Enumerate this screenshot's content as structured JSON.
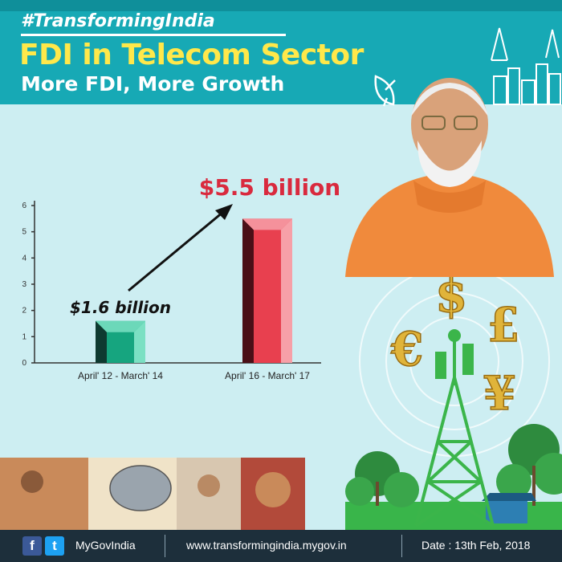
{
  "header": {
    "hashtag": "#TransformingIndia",
    "title": "FDI in Telecom Sector",
    "subtitle": "More FDI, More Growth"
  },
  "chart_data": {
    "type": "bar",
    "categories": [
      "April' 12 - March' 14",
      "April' 16 - March' 17"
    ],
    "values": [
      1.6,
      5.5
    ],
    "data_labels": [
      "$1.6 billion",
      "$5.5 billion"
    ],
    "title": "",
    "xlabel": "",
    "ylabel": "",
    "ylim": [
      0,
      6
    ],
    "yticks": [
      0,
      1,
      2,
      3,
      4,
      5,
      6
    ],
    "grid": false,
    "legend": "none",
    "colors": [
      "#16a57f",
      "#e8404f"
    ]
  },
  "decor": {
    "currency_symbols": [
      "$",
      "£",
      "€",
      "¥"
    ]
  },
  "footer": {
    "facebook_icon": "f",
    "twitter_icon": "t",
    "handle": "MyGovIndia",
    "website": "www.transformingindia.mygov.in",
    "date": "Date : 13th  Feb, 2018"
  }
}
